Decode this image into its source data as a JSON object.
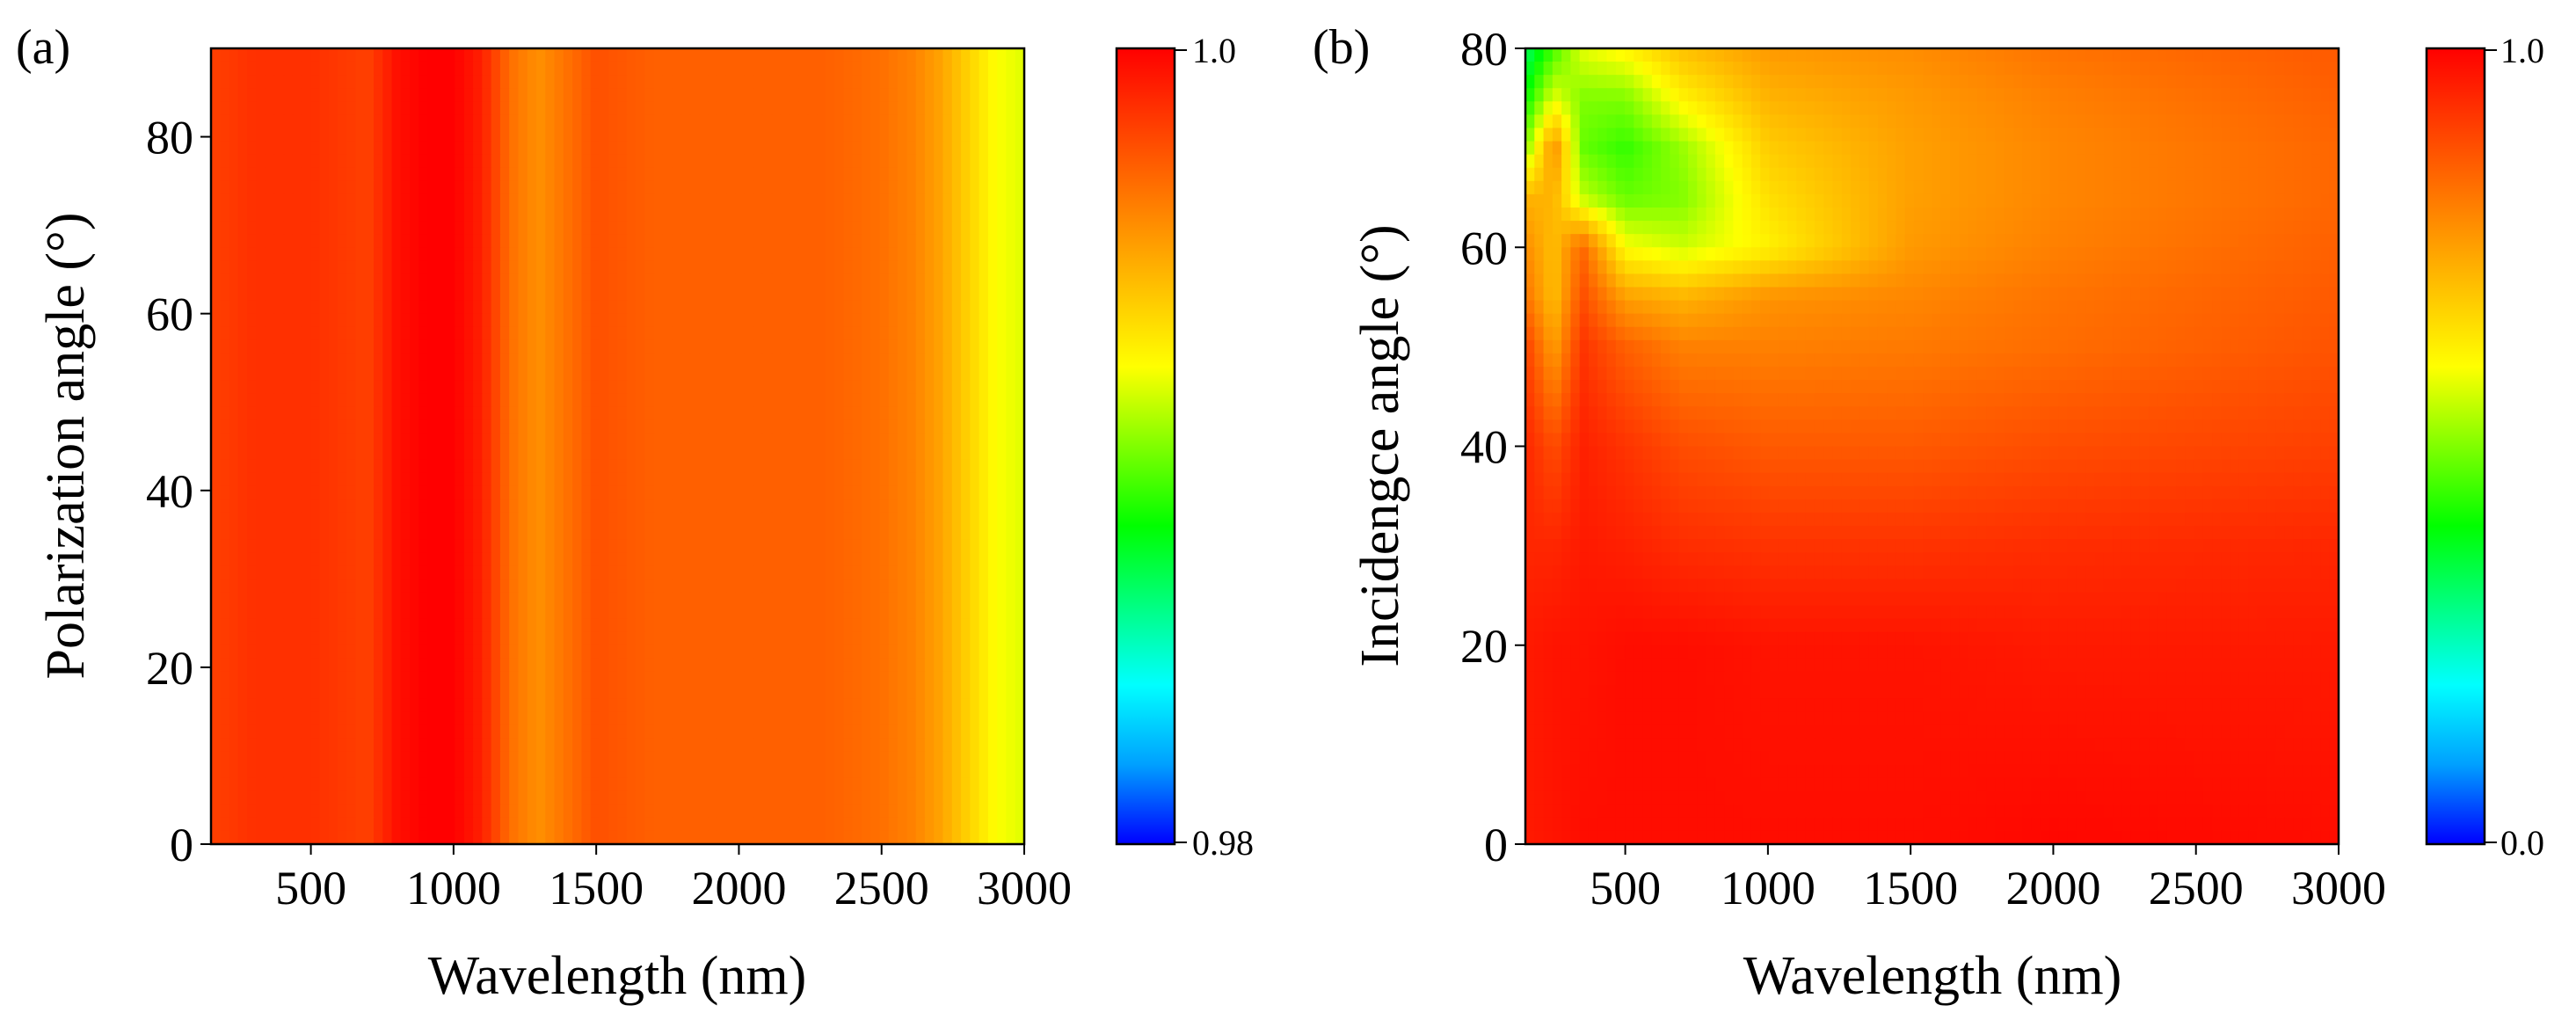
{
  "chart_data": [
    {
      "type": "heatmap",
      "panel_label": "(a)",
      "xlabel": "Wavelength (nm)",
      "ylabel": "Polarization angle (°)",
      "xlim": [
        150,
        3000
      ],
      "ylim": [
        0,
        90
      ],
      "x_ticks": [
        500,
        1000,
        1500,
        2000,
        2500,
        3000
      ],
      "x_tick_labels": [
        "500",
        "1000",
        "1500",
        "2000",
        "2500",
        "3000"
      ],
      "y_ticks": [
        0,
        20,
        40,
        60,
        80
      ],
      "y_tick_labels": [
        "0",
        "20",
        "40",
        "60",
        "80"
      ],
      "colorbar": {
        "min": 0.98,
        "max": 1.0,
        "min_label": "0.98",
        "max_label": "1.0"
      },
      "colormap": [
        "#0000ff",
        "#00a0ff",
        "#00ffff",
        "#00ff80",
        "#00ff00",
        "#80ff00",
        "#ffff00",
        "#ffc000",
        "#ff8000",
        "#ff4000",
        "#ff0000"
      ],
      "grid": false,
      "x_samples": [
        150,
        300,
        500,
        700,
        800,
        900,
        1000,
        1100,
        1200,
        1300,
        1400,
        1500,
        1700,
        2000,
        2300,
        2500,
        2600,
        2700,
        2800,
        2900,
        3000
      ],
      "y_samples": [
        0,
        90
      ],
      "z": [
        [
          0.998,
          0.9985,
          0.9985,
          0.998,
          0.9995,
          1.0,
          1.0,
          0.999,
          0.9965,
          0.9955,
          0.9965,
          0.9975,
          0.997,
          0.997,
          0.997,
          0.9965,
          0.996,
          0.995,
          0.9935,
          0.992,
          0.9915
        ],
        [
          0.998,
          0.9985,
          0.9985,
          0.998,
          0.9995,
          1.0,
          1.0,
          0.999,
          0.9965,
          0.9955,
          0.9965,
          0.9975,
          0.997,
          0.997,
          0.997,
          0.9965,
          0.996,
          0.995,
          0.9935,
          0.992,
          0.9915
        ]
      ]
    },
    {
      "type": "heatmap",
      "panel_label": "(b)",
      "xlabel": "Wavelength (nm)",
      "ylabel": "Incidengce angle (°)",
      "xlim": [
        150,
        3000
      ],
      "ylim": [
        0,
        80
      ],
      "x_ticks": [
        500,
        1000,
        1500,
        2000,
        2500,
        3000
      ],
      "x_tick_labels": [
        "500",
        "1000",
        "1500",
        "2000",
        "2500",
        "3000"
      ],
      "y_ticks": [
        0,
        20,
        40,
        60,
        80
      ],
      "y_tick_labels": [
        "0",
        "20",
        "40",
        "60",
        "80"
      ],
      "colorbar": {
        "min": 0.0,
        "max": 1.0,
        "min_label": "0.0",
        "max_label": "1.0"
      },
      "colormap": [
        "#0000ff",
        "#00a0ff",
        "#00ffff",
        "#00ff80",
        "#00ff00",
        "#80ff00",
        "#ffff00",
        "#ffc000",
        "#ff8000",
        "#ff4000",
        "#ff0000"
      ],
      "grid": false,
      "x_samples": [
        150,
        250,
        350,
        500,
        700,
        1000,
        1500,
        2000,
        3000
      ],
      "y_samples": [
        0,
        20,
        30,
        40,
        50,
        55,
        60,
        65,
        70,
        75,
        80
      ],
      "z": [
        [
          0.96,
          0.97,
          0.98,
          0.98,
          0.98,
          0.98,
          0.98,
          0.99,
          0.98
        ],
        [
          0.96,
          0.97,
          0.97,
          0.98,
          0.98,
          0.97,
          0.97,
          0.96,
          0.96
        ],
        [
          0.94,
          0.94,
          0.96,
          0.95,
          0.93,
          0.92,
          0.92,
          0.93,
          0.94
        ],
        [
          0.94,
          0.88,
          0.95,
          0.92,
          0.88,
          0.86,
          0.86,
          0.88,
          0.9
        ],
        [
          0.9,
          0.75,
          0.92,
          0.85,
          0.8,
          0.8,
          0.81,
          0.83,
          0.87
        ],
        [
          0.82,
          0.7,
          0.88,
          0.75,
          0.72,
          0.77,
          0.79,
          0.82,
          0.86
        ],
        [
          0.78,
          0.7,
          0.84,
          0.6,
          0.56,
          0.62,
          0.76,
          0.8,
          0.85
        ],
        [
          0.72,
          0.72,
          0.55,
          0.48,
          0.5,
          0.65,
          0.75,
          0.79,
          0.84
        ],
        [
          0.5,
          0.78,
          0.48,
          0.44,
          0.52,
          0.68,
          0.75,
          0.79,
          0.84
        ],
        [
          0.4,
          0.58,
          0.5,
          0.5,
          0.62,
          0.72,
          0.76,
          0.8,
          0.85
        ],
        [
          0.32,
          0.45,
          0.58,
          0.62,
          0.7,
          0.76,
          0.78,
          0.82,
          0.86
        ]
      ]
    }
  ]
}
